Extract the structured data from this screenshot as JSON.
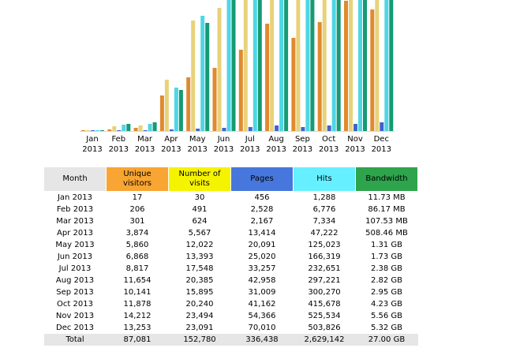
{
  "chart_data": {
    "type": "bar",
    "categories": [
      [
        "Jan",
        "2013"
      ],
      [
        "Feb",
        "2013"
      ],
      [
        "Mar",
        "2013"
      ],
      [
        "Apr",
        "2013"
      ],
      [
        "May",
        "2013"
      ],
      [
        "Jun",
        "2013"
      ],
      [
        "Jul",
        "2013"
      ],
      [
        "Aug",
        "2013"
      ],
      [
        "Sep",
        "2013"
      ],
      [
        "Oct",
        "2013"
      ],
      [
        "Nov",
        "2013"
      ],
      [
        "Dec",
        "2013"
      ]
    ],
    "series": [
      {
        "name": "Unique visitors",
        "color": "#e08a2e",
        "values": [
          17,
          206,
          301,
          3874,
          5860,
          6868,
          8817,
          11654,
          10141,
          11878,
          14212,
          13253
        ]
      },
      {
        "name": "Number of visits",
        "color": "#e8d27a",
        "values": [
          30,
          491,
          624,
          5567,
          12022,
          13393,
          17548,
          20385,
          15895,
          20240,
          23494,
          23091
        ]
      },
      {
        "name": "Pages",
        "color": "#3f63cf",
        "values": [
          456,
          2528,
          2167,
          13414,
          20091,
          25020,
          33257,
          42958,
          31009,
          41162,
          54366,
          70010
        ]
      },
      {
        "name": "Hits",
        "color": "#4fd6e4",
        "values": [
          1288,
          6776,
          7334,
          47222,
          125023,
          166319,
          232651,
          297221,
          300270,
          415678,
          525534,
          503826
        ]
      },
      {
        "name": "Bandwidth",
        "color": "#169a73",
        "values": [
          11.73,
          86.17,
          107.53,
          508.46,
          1341,
          1772,
          2437,
          2888,
          3021,
          4332,
          5693,
          5448
        ]
      }
    ],
    "ylim_visits": [
      0,
      14000
    ],
    "ylim_hits": [
      0,
      140000
    ],
    "ylim_pages": [
      0,
      1000000
    ],
    "ylim_bandwidth": [
      0,
      1600
    ]
  },
  "table": {
    "headers": {
      "month": "Month",
      "unique_visitors": "Unique visitors",
      "visits": "Number of visits",
      "pages": "Pages",
      "hits": "Hits",
      "bandwidth": "Bandwidth"
    },
    "rows": [
      {
        "month": "Jan 2013",
        "uv": "17",
        "visits": "30",
        "pages": "456",
        "hits": "1,288",
        "bw": "11.73 MB"
      },
      {
        "month": "Feb 2013",
        "uv": "206",
        "visits": "491",
        "pages": "2,528",
        "hits": "6,776",
        "bw": "86.17 MB"
      },
      {
        "month": "Mar 2013",
        "uv": "301",
        "visits": "624",
        "pages": "2,167",
        "hits": "7,334",
        "bw": "107.53 MB"
      },
      {
        "month": "Apr 2013",
        "uv": "3,874",
        "visits": "5,567",
        "pages": "13,414",
        "hits": "47,222",
        "bw": "508.46 MB"
      },
      {
        "month": "May 2013",
        "uv": "5,860",
        "visits": "12,022",
        "pages": "20,091",
        "hits": "125,023",
        "bw": "1.31 GB"
      },
      {
        "month": "Jun 2013",
        "uv": "6,868",
        "visits": "13,393",
        "pages": "25,020",
        "hits": "166,319",
        "bw": "1.73 GB"
      },
      {
        "month": "Jul 2013",
        "uv": "8,817",
        "visits": "17,548",
        "pages": "33,257",
        "hits": "232,651",
        "bw": "2.38 GB"
      },
      {
        "month": "Aug 2013",
        "uv": "11,654",
        "visits": "20,385",
        "pages": "42,958",
        "hits": "297,221",
        "bw": "2.82 GB"
      },
      {
        "month": "Sep 2013",
        "uv": "10,141",
        "visits": "15,895",
        "pages": "31,009",
        "hits": "300,270",
        "bw": "2.95 GB"
      },
      {
        "month": "Oct 2013",
        "uv": "11,878",
        "visits": "20,240",
        "pages": "41,162",
        "hits": "415,678",
        "bw": "4.23 GB"
      },
      {
        "month": "Nov 2013",
        "uv": "14,212",
        "visits": "23,494",
        "pages": "54,366",
        "hits": "525,534",
        "bw": "5.56 GB"
      },
      {
        "month": "Dec 2013",
        "uv": "13,253",
        "visits": "23,091",
        "pages": "70,010",
        "hits": "503,826",
        "bw": "5.32 GB"
      }
    ],
    "total": {
      "month": "Total",
      "uv": "87,081",
      "visits": "152,780",
      "pages": "336,438",
      "hits": "2,629,142",
      "bw": "27.00 GB"
    }
  }
}
